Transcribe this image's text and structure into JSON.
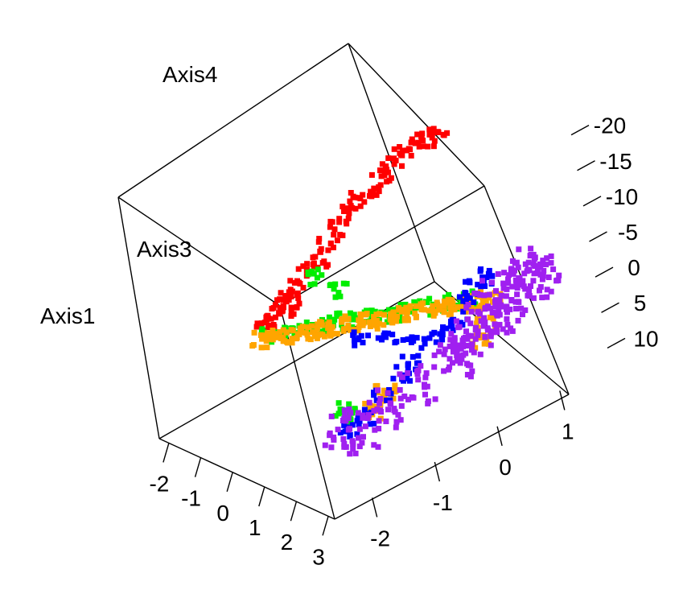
{
  "chart_data": {
    "type": "scatter",
    "title": "",
    "axes": {
      "axis1": {
        "label": "Axis1",
        "ticks": [
          "-2",
          "-1",
          "0",
          "1",
          "2",
          "3"
        ],
        "range": [
          -2.3,
          3.2
        ]
      },
      "axis3": {
        "label": "Axis3",
        "ticks": [
          "-2",
          "-1",
          "0",
          "1"
        ],
        "range": [
          -2.6,
          1.8
        ]
      },
      "axis4": {
        "label": "Axis4",
        "ticks": [
          "-20",
          "-15",
          "-10",
          "-5",
          "0",
          "5",
          "10"
        ],
        "range": [
          -22,
          12
        ]
      }
    },
    "grid": false,
    "legend": "none",
    "colors": {
      "red": "#ff0000",
      "orange": "#ffa500",
      "green": "#00ee00",
      "blue": "#0000ff",
      "purple": "#a020f0"
    },
    "series": [
      {
        "color": "red",
        "points": [
          {
            "a1": -1.9,
            "a3": -0.7,
            "a4": 3.0
          },
          {
            "a1": -1.8,
            "a3": -0.6,
            "a4": 1.5
          },
          {
            "a1": -1.6,
            "a3": -0.5,
            "a4": -0.5
          },
          {
            "a1": -1.4,
            "a3": -0.4,
            "a4": -2.5
          },
          {
            "a1": -1.2,
            "a3": -0.3,
            "a4": -4.0
          },
          {
            "a1": -1.0,
            "a3": -0.2,
            "a4": -6.0
          },
          {
            "a1": -0.8,
            "a3": -0.1,
            "a4": -8.0
          },
          {
            "a1": -0.6,
            "a3": 0.0,
            "a4": -10.0
          },
          {
            "a1": -0.4,
            "a3": 0.1,
            "a4": -12.0
          },
          {
            "a1": -0.2,
            "a3": 0.2,
            "a4": -13.5
          },
          {
            "a1": 0.0,
            "a3": 0.3,
            "a4": -15.0
          },
          {
            "a1": 0.2,
            "a3": 0.4,
            "a4": -16.5
          },
          {
            "a1": 0.4,
            "a3": 0.5,
            "a4": -18.0
          },
          {
            "a1": 0.6,
            "a3": 0.6,
            "a4": -19.0
          },
          {
            "a1": 0.8,
            "a3": 0.7,
            "a4": -20.0
          },
          {
            "a1": 1.0,
            "a3": 0.8,
            "a4": -21.0
          },
          {
            "a1": -2.0,
            "a3": -0.9,
            "a4": 4.5
          },
          {
            "a1": -1.7,
            "a3": -1.0,
            "a4": 2.5
          },
          {
            "a1": -1.5,
            "a3": -0.8,
            "a4": 1.0
          },
          {
            "a1": -1.3,
            "a3": -0.7,
            "a4": 0.0
          }
        ]
      },
      {
        "color": "green",
        "points": [
          {
            "a1": -2.1,
            "a3": -0.8,
            "a4": 6.0
          },
          {
            "a1": -1.8,
            "a3": -0.7,
            "a4": 5.5
          },
          {
            "a1": -1.5,
            "a3": -0.6,
            "a4": 5.0
          },
          {
            "a1": -1.2,
            "a3": -0.5,
            "a4": 4.5
          },
          {
            "a1": -0.9,
            "a3": -0.4,
            "a4": 4.0
          },
          {
            "a1": -0.6,
            "a3": -0.3,
            "a4": 3.5
          },
          {
            "a1": -0.3,
            "a3": -0.2,
            "a4": 3.0
          },
          {
            "a1": 0.0,
            "a3": -0.1,
            "a4": 2.5
          },
          {
            "a1": 0.3,
            "a3": 0.0,
            "a4": 2.0
          },
          {
            "a1": 0.6,
            "a3": 0.1,
            "a4": 1.5
          },
          {
            "a1": 0.9,
            "a3": 0.2,
            "a4": 1.0
          },
          {
            "a1": 1.2,
            "a3": 0.3,
            "a4": 0.5
          },
          {
            "a1": 1.5,
            "a3": 0.4,
            "a4": 0.0
          },
          {
            "a1": 1.8,
            "a3": 0.5,
            "a4": -0.5
          },
          {
            "a1": -1.4,
            "a3": -0.3,
            "a4": -1.0
          },
          {
            "a1": -1.0,
            "a3": -0.2,
            "a4": 0.5
          },
          {
            "a1": 2.0,
            "a3": -1.6,
            "a4": 3.5
          },
          {
            "a1": 2.2,
            "a3": -1.8,
            "a4": 4.0
          }
        ]
      },
      {
        "color": "orange",
        "points": [
          {
            "a1": -2.2,
            "a3": -0.9,
            "a4": 6.5
          },
          {
            "a1": -1.9,
            "a3": -0.8,
            "a4": 6.0
          },
          {
            "a1": -1.6,
            "a3": -0.7,
            "a4": 5.5
          },
          {
            "a1": -1.3,
            "a3": -0.6,
            "a4": 5.0
          },
          {
            "a1": -1.0,
            "a3": -0.5,
            "a4": 4.5
          },
          {
            "a1": -0.7,
            "a3": -0.4,
            "a4": 4.0
          },
          {
            "a1": -0.4,
            "a3": -0.3,
            "a4": 3.5
          },
          {
            "a1": -0.1,
            "a3": -0.2,
            "a4": 3.0
          },
          {
            "a1": 0.2,
            "a3": -0.1,
            "a4": 2.5
          },
          {
            "a1": 0.5,
            "a3": 0.0,
            "a4": 2.0
          },
          {
            "a1": 0.8,
            "a3": 0.1,
            "a4": 1.5
          },
          {
            "a1": 1.1,
            "a3": 0.2,
            "a4": 1.0
          },
          {
            "a1": 1.4,
            "a3": 0.3,
            "a4": 0.5
          },
          {
            "a1": 1.7,
            "a3": 0.4,
            "a4": 0.0
          },
          {
            "a1": 2.0,
            "a3": 0.5,
            "a4": -0.5
          },
          {
            "a1": 2.3,
            "a3": 0.6,
            "a4": -1.0
          },
          {
            "a1": 2.5,
            "a3": 0.4,
            "a4": 1.0
          },
          {
            "a1": 2.7,
            "a3": 0.2,
            "a4": 2.0
          },
          {
            "a1": 2.4,
            "a3": -1.2,
            "a4": 3.0
          },
          {
            "a1": 2.6,
            "a3": -1.5,
            "a4": 3.5
          }
        ]
      },
      {
        "color": "blue",
        "points": [
          {
            "a1": -0.2,
            "a3": -0.3,
            "a4": 5.0
          },
          {
            "a1": 0.4,
            "a3": -0.2,
            "a4": 4.5
          },
          {
            "a1": 1.0,
            "a3": -0.1,
            "a4": 4.0
          },
          {
            "a1": 1.5,
            "a3": 0.0,
            "a4": 3.0
          },
          {
            "a1": 1.9,
            "a3": 0.1,
            "a4": 2.0
          },
          {
            "a1": 2.1,
            "a3": 0.2,
            "a4": 0.0
          },
          {
            "a1": 2.2,
            "a3": 0.3,
            "a4": -2.0
          },
          {
            "a1": 2.3,
            "a3": 0.4,
            "a4": -3.5
          },
          {
            "a1": 2.4,
            "a3": 0.5,
            "a4": -5.0
          },
          {
            "a1": 2.1,
            "a3": -0.8,
            "a4": 3.0
          },
          {
            "a1": 2.3,
            "a3": -1.2,
            "a4": 3.5
          },
          {
            "a1": 2.5,
            "a3": -1.6,
            "a4": 4.0
          },
          {
            "a1": 2.6,
            "a3": -1.9,
            "a4": 4.5
          },
          {
            "a1": 1.8,
            "a3": -0.5,
            "a4": 3.5
          }
        ]
      },
      {
        "color": "purple",
        "points": [
          {
            "a1": 2.4,
            "a3": 0.6,
            "a4": -1.5
          },
          {
            "a1": 2.6,
            "a3": 0.8,
            "a4": -2.0
          },
          {
            "a1": 2.8,
            "a3": 1.0,
            "a4": -2.5
          },
          {
            "a1": 2.9,
            "a3": 1.2,
            "a4": -3.0
          },
          {
            "a1": 2.7,
            "a3": 0.3,
            "a4": -0.5
          },
          {
            "a1": 2.9,
            "a3": 0.0,
            "a4": 0.5
          },
          {
            "a1": 3.0,
            "a3": -0.4,
            "a4": 1.5
          },
          {
            "a1": 2.8,
            "a3": -0.9,
            "a4": 2.5
          },
          {
            "a1": 2.7,
            "a3": -1.4,
            "a4": 3.5
          },
          {
            "a1": 2.8,
            "a3": -1.8,
            "a4": 4.0
          },
          {
            "a1": 2.6,
            "a3": -2.0,
            "a4": 4.5
          },
          {
            "a1": 3.0,
            "a3": 0.5,
            "a4": -1.0
          },
          {
            "a1": 2.5,
            "a3": 1.1,
            "a4": -3.5
          },
          {
            "a1": 3.1,
            "a3": -0.2,
            "a4": 0.0
          }
        ]
      }
    ]
  }
}
